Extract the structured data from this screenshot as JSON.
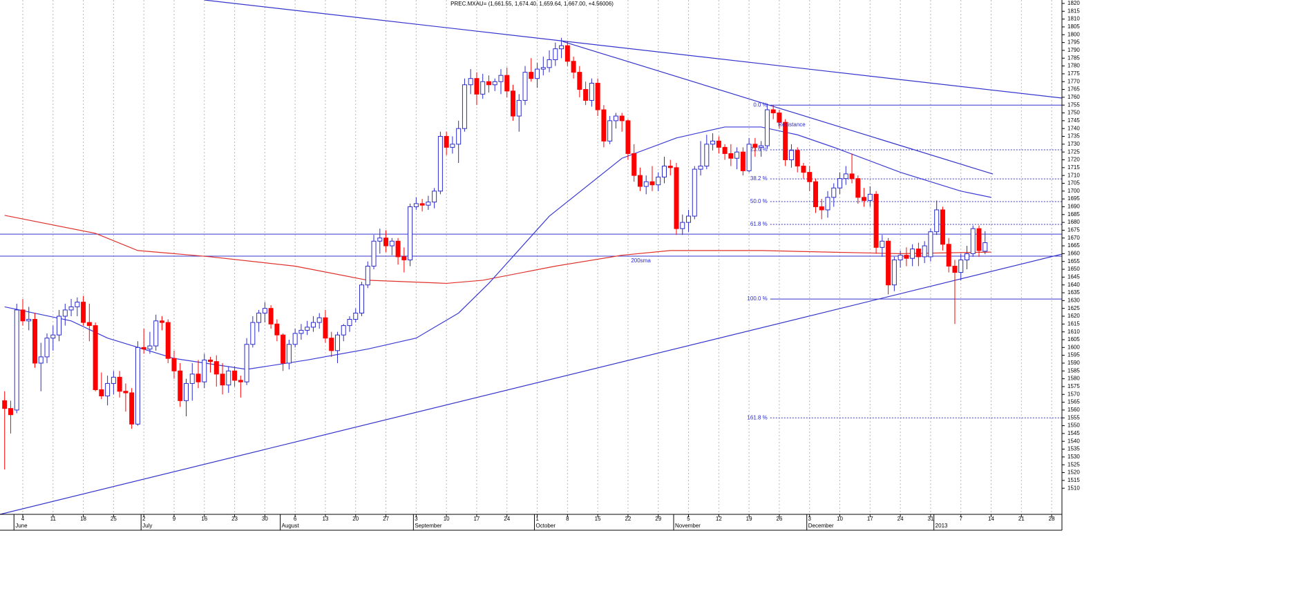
{
  "chart_data": {
    "type": "candlestick",
    "title": "PREC.MXAU= (1,661.55, 1,674.40, 1,659.64, 1,667.00, +4.56006)",
    "categories": [
      null,
      null,
      null,
      "4",
      null,
      null,
      null,
      null,
      "11",
      null,
      null,
      null,
      null,
      "18",
      null,
      null,
      null,
      null,
      "25",
      null,
      null,
      null,
      null,
      "2",
      null,
      null,
      null,
      null,
      "9",
      null,
      null,
      null,
      null,
      "16",
      null,
      null,
      null,
      null,
      "23",
      null,
      null,
      null,
      null,
      "30",
      null,
      null,
      null,
      null,
      "6",
      null,
      null,
      null,
      null,
      "13",
      null,
      null,
      null,
      null,
      "20",
      null,
      null,
      null,
      null,
      "27",
      null,
      null,
      null,
      null,
      "3",
      null,
      null,
      null,
      null,
      "10",
      null,
      null,
      null,
      null,
      "17",
      null,
      null,
      null,
      null,
      "24",
      null,
      null,
      null,
      null,
      "1",
      null,
      null,
      null,
      null,
      "8",
      null,
      null,
      null,
      null,
      "15",
      null,
      null,
      null,
      null,
      "22",
      null,
      null,
      null,
      null,
      "29",
      null,
      null,
      null,
      null,
      "5",
      null,
      null,
      null,
      null,
      "12",
      null,
      null,
      null,
      null,
      "19",
      null,
      null,
      null,
      null,
      "26",
      null,
      null,
      null,
      null,
      "3",
      null,
      null,
      null,
      null,
      "10",
      null,
      null,
      null,
      null,
      "17",
      null,
      null,
      null,
      null,
      "24",
      null,
      null,
      null,
      null,
      "31",
      null,
      null,
      null,
      null,
      "7",
      null,
      null,
      null,
      null,
      "14",
      null,
      null,
      null,
      null,
      "21",
      null,
      null,
      null,
      null,
      "28",
      null
    ],
    "month_labels": [
      {
        "index": 2,
        "label": "June"
      },
      {
        "index": 23,
        "label": "July"
      },
      {
        "index": 46,
        "label": "August"
      },
      {
        "index": 68,
        "label": "September"
      },
      {
        "index": 88,
        "label": "October"
      },
      {
        "index": 111,
        "label": "November"
      },
      {
        "index": 133,
        "label": "December"
      },
      {
        "index": 154,
        "label": "2013"
      }
    ],
    "candles": [
      [
        1566,
        1572,
        1522,
        1561
      ],
      [
        1561,
        1566,
        1545,
        1557
      ],
      [
        1560,
        1628,
        1558,
        1624
      ],
      [
        1624,
        1631,
        1614,
        1617
      ],
      [
        1617,
        1626,
        1611,
        1618
      ],
      [
        1618,
        1622,
        1587,
        1590
      ],
      [
        1590,
        1603,
        1572,
        1594
      ],
      [
        1594,
        1609,
        1590,
        1606
      ],
      [
        1606,
        1614,
        1598,
        1608
      ],
      [
        1608,
        1624,
        1604,
        1620
      ],
      [
        1620,
        1628,
        1614,
        1624
      ],
      [
        1624,
        1631,
        1620,
        1626
      ],
      [
        1626,
        1632,
        1620,
        1629
      ],
      [
        1629,
        1633,
        1614,
        1616
      ],
      [
        1616,
        1628,
        1604,
        1614
      ],
      [
        1614,
        1616,
        1572,
        1573
      ],
      [
        1573,
        1584,
        1567,
        1569
      ],
      [
        1569,
        1582,
        1563,
        1577
      ],
      [
        1577,
        1585,
        1570,
        1581
      ],
      [
        1581,
        1585,
        1568,
        1572
      ],
      [
        1572,
        1577,
        1559,
        1571
      ],
      [
        1571,
        1574,
        1548,
        1551
      ],
      [
        1551,
        1604,
        1550,
        1600
      ],
      [
        1600,
        1612,
        1596,
        1599
      ],
      [
        1599,
        1610,
        1596,
        1601
      ],
      [
        1601,
        1621,
        1598,
        1617
      ],
      [
        1617,
        1620,
        1611,
        1616
      ],
      [
        1616,
        1618,
        1590,
        1593
      ],
      [
        1593,
        1598,
        1580,
        1585
      ],
      [
        1585,
        1590,
        1562,
        1566
      ],
      [
        1566,
        1580,
        1556,
        1577
      ],
      [
        1577,
        1590,
        1566,
        1583
      ],
      [
        1583,
        1592,
        1574,
        1578
      ],
      [
        1578,
        1596,
        1574,
        1592
      ],
      [
        1592,
        1594,
        1584,
        1591
      ],
      [
        1591,
        1595,
        1575,
        1583
      ],
      [
        1583,
        1590,
        1570,
        1576
      ],
      [
        1576,
        1588,
        1571,
        1585
      ],
      [
        1585,
        1588,
        1575,
        1579
      ],
      [
        1579,
        1582,
        1568,
        1578
      ],
      [
        1578,
        1606,
        1576,
        1602
      ],
      [
        1602,
        1620,
        1600,
        1616
      ],
      [
        1616,
        1624,
        1610,
        1622
      ],
      [
        1622,
        1629,
        1616,
        1625
      ],
      [
        1625,
        1627,
        1612,
        1615
      ],
      [
        1615,
        1618,
        1604,
        1608
      ],
      [
        1608,
        1609,
        1585,
        1590
      ],
      [
        1590,
        1605,
        1586,
        1602
      ],
      [
        1602,
        1612,
        1600,
        1609
      ],
      [
        1609,
        1615,
        1605,
        1611
      ],
      [
        1611,
        1617,
        1608,
        1613
      ],
      [
        1613,
        1620,
        1610,
        1616
      ],
      [
        1616,
        1622,
        1612,
        1619
      ],
      [
        1619,
        1624,
        1603,
        1606
      ],
      [
        1606,
        1610,
        1594,
        1598
      ],
      [
        1598,
        1610,
        1590,
        1608
      ],
      [
        1608,
        1615,
        1604,
        1614
      ],
      [
        1614,
        1620,
        1610,
        1618
      ],
      [
        1618,
        1625,
        1616,
        1622
      ],
      [
        1622,
        1642,
        1620,
        1640
      ],
      [
        1640,
        1655,
        1638,
        1652
      ],
      [
        1652,
        1672,
        1650,
        1668
      ],
      [
        1668,
        1676,
        1660,
        1670
      ],
      [
        1670,
        1675,
        1661,
        1665
      ],
      [
        1665,
        1670,
        1659,
        1668
      ],
      [
        1668,
        1670,
        1653,
        1658
      ],
      [
        1658,
        1664,
        1648,
        1656
      ],
      [
        1656,
        1692,
        1652,
        1690
      ],
      [
        1690,
        1696,
        1688,
        1692
      ],
      [
        1692,
        1695,
        1687,
        1691
      ],
      [
        1691,
        1697,
        1688,
        1693
      ],
      [
        1693,
        1702,
        1689,
        1700
      ],
      [
        1700,
        1738,
        1698,
        1735
      ],
      [
        1735,
        1738,
        1723,
        1728
      ],
      [
        1728,
        1735,
        1724,
        1730
      ],
      [
        1730,
        1745,
        1718,
        1740
      ],
      [
        1740,
        1772,
        1738,
        1768
      ],
      [
        1768,
        1778,
        1762,
        1772
      ],
      [
        1772,
        1776,
        1755,
        1762
      ],
      [
        1762,
        1775,
        1759,
        1770
      ],
      [
        1770,
        1774,
        1763,
        1768
      ],
      [
        1768,
        1772,
        1764,
        1770
      ],
      [
        1770,
        1778,
        1762,
        1774
      ],
      [
        1774,
        1779,
        1760,
        1764
      ],
      [
        1764,
        1768,
        1745,
        1748
      ],
      [
        1748,
        1762,
        1738,
        1758
      ],
      [
        1758,
        1780,
        1755,
        1776
      ],
      [
        1776,
        1785,
        1770,
        1772
      ],
      [
        1772,
        1782,
        1766,
        1778
      ],
      [
        1778,
        1786,
        1774,
        1779
      ],
      [
        1779,
        1790,
        1776,
        1784
      ],
      [
        1784,
        1795,
        1780,
        1791
      ],
      [
        1791,
        1798,
        1785,
        1793
      ],
      [
        1793,
        1796,
        1780,
        1783
      ],
      [
        1783,
        1786,
        1772,
        1776
      ],
      [
        1776,
        1780,
        1760,
        1765
      ],
      [
        1765,
        1770,
        1755,
        1758
      ],
      [
        1758,
        1772,
        1754,
        1769
      ],
      [
        1769,
        1772,
        1748,
        1752
      ],
      [
        1752,
        1755,
        1728,
        1732
      ],
      [
        1732,
        1748,
        1730,
        1745
      ],
      [
        1745,
        1750,
        1740,
        1748
      ],
      [
        1748,
        1750,
        1738,
        1745
      ],
      [
        1745,
        1746,
        1720,
        1724
      ],
      [
        1724,
        1730,
        1706,
        1710
      ],
      [
        1710,
        1715,
        1700,
        1703
      ],
      [
        1703,
        1710,
        1698,
        1706
      ],
      [
        1706,
        1716,
        1700,
        1704
      ],
      [
        1704,
        1712,
        1700,
        1709
      ],
      [
        1709,
        1722,
        1705,
        1716
      ],
      [
        1716,
        1720,
        1710,
        1715
      ],
      [
        1715,
        1718,
        1672,
        1676
      ],
      [
        1676,
        1685,
        1672,
        1680
      ],
      [
        1680,
        1688,
        1674,
        1684
      ],
      [
        1684,
        1716,
        1682,
        1714
      ],
      [
        1714,
        1732,
        1710,
        1716
      ],
      [
        1716,
        1736,
        1714,
        1730
      ],
      [
        1730,
        1737,
        1726,
        1732
      ],
      [
        1732,
        1735,
        1724,
        1728
      ],
      [
        1728,
        1730,
        1720,
        1724
      ],
      [
        1724,
        1730,
        1716,
        1721
      ],
      [
        1721,
        1728,
        1714,
        1725
      ],
      [
        1725,
        1728,
        1710,
        1713
      ],
      [
        1713,
        1734,
        1712,
        1730
      ],
      [
        1730,
        1734,
        1722,
        1728
      ],
      [
        1728,
        1732,
        1722,
        1729
      ],
      [
        1729,
        1756,
        1727,
        1752
      ],
      [
        1752,
        1755,
        1746,
        1750
      ],
      [
        1750,
        1752,
        1740,
        1744
      ],
      [
        1744,
        1746,
        1716,
        1720
      ],
      [
        1720,
        1730,
        1715,
        1726
      ],
      [
        1726,
        1728,
        1712,
        1716
      ],
      [
        1716,
        1718,
        1708,
        1712
      ],
      [
        1712,
        1716,
        1700,
        1706
      ],
      [
        1706,
        1708,
        1686,
        1690
      ],
      [
        1690,
        1695,
        1682,
        1688
      ],
      [
        1688,
        1700,
        1683,
        1696
      ],
      [
        1696,
        1705,
        1690,
        1702
      ],
      [
        1702,
        1712,
        1698,
        1708
      ],
      [
        1708,
        1716,
        1704,
        1711
      ],
      [
        1711,
        1724,
        1705,
        1708
      ],
      [
        1708,
        1710,
        1692,
        1696
      ],
      [
        1696,
        1702,
        1690,
        1694
      ],
      [
        1694,
        1703,
        1690,
        1698
      ],
      [
        1698,
        1700,
        1660,
        1664
      ],
      [
        1664,
        1672,
        1658,
        1668
      ],
      [
        1668,
        1670,
        1634,
        1640
      ],
      [
        1640,
        1658,
        1636,
        1656
      ],
      [
        1656,
        1662,
        1651,
        1659
      ],
      [
        1659,
        1664,
        1652,
        1657
      ],
      [
        1657,
        1666,
        1652,
        1663
      ],
      [
        1663,
        1667,
        1652,
        1658
      ],
      [
        1658,
        1668,
        1654,
        1665
      ],
      [
        1658,
        1676,
        1655,
        1674
      ],
      [
        1674,
        1694,
        1672,
        1688
      ],
      [
        1688,
        1690,
        1662,
        1666
      ],
      [
        1666,
        1670,
        1648,
        1652
      ],
      [
        1652,
        1656,
        1615,
        1648
      ],
      [
        1648,
        1660,
        1643,
        1656
      ],
      [
        1656,
        1665,
        1650,
        1660
      ],
      [
        1660,
        1678,
        1658,
        1676
      ],
      [
        1676,
        1678,
        1658,
        1662
      ],
      [
        1661.55,
        1674.4,
        1659.64,
        1667
      ],
      null,
      null,
      null,
      null,
      null,
      null,
      null,
      null,
      null,
      null,
      null
    ],
    "up_color": "#2a2acc",
    "down_color": "#ff0000",
    "series": [
      {
        "name": "200sma",
        "color": "#e0302a",
        "x": [
          0,
          15,
          22,
          34,
          48,
          60,
          73,
          79,
          91,
          102,
          110,
          125,
          136,
          148,
          163
        ],
        "values": [
          1684.5,
          1673,
          1662,
          1658,
          1652,
          1643,
          1641,
          1643,
          1652,
          1659,
          1662,
          1662,
          1661,
          1660,
          1661
        ]
      },
      {
        "color": "#3a3ad6",
        "x": [
          0,
          11,
          17,
          28,
          40,
          50,
          60,
          68,
          75,
          80,
          90,
          102,
          111,
          119,
          125,
          131,
          137,
          148,
          158,
          163
        ],
        "values": [
          1626,
          1617,
          1606,
          1593,
          1586,
          1592,
          1599,
          1606,
          1622,
          1641,
          1684,
          1721,
          1734,
          1741,
          1741,
          1736,
          1728,
          1712,
          1700,
          1696
        ]
      }
    ],
    "trendlines": [
      {
        "x": [
          33,
          174.7
        ],
        "values": [
          1822.2,
          1759.5
        ]
      },
      {
        "x": [
          92.2,
          163.3
        ],
        "values": [
          1795.7,
          1710.9
        ]
      },
      {
        "x": [
          -0.765,
          174.7
        ],
        "values": [
          1493.3,
          1659.7
        ]
      }
    ],
    "trend_color": "#3333cc",
    "hlines": [
      1672.5,
      1658.4
    ],
    "fib_x": 126.5,
    "fib_levels": [
      {
        "ratio": 0.0,
        "label": "0.0 %",
        "price": 1755,
        "solid": true
      },
      {
        "ratio": 23.6,
        "label": "23.6 %",
        "price": 1726.4
      },
      {
        "ratio": 38.2,
        "label": "38.2 %",
        "price": 1707.8
      },
      {
        "ratio": 50.0,
        "label": "50.0 %",
        "price": 1693.3
      },
      {
        "ratio": 61.8,
        "label": "61.8 %",
        "price": 1678.7
      },
      {
        "ratio": 100.0,
        "label": "100.0 %",
        "price": 1631,
        "solid": true
      },
      {
        "ratio": 161.8,
        "label": "161.8 %",
        "price": 1555
      }
    ],
    "annotations": [
      {
        "text": "Resistance",
        "x": 127.8,
        "y": 1742.3
      },
      {
        "text": "200sma",
        "x": 103.5,
        "y": 1655.3
      }
    ],
    "xlim": [
      -0.765,
      174.7
    ],
    "ylim": [
      1493.3,
      1822.2
    ],
    "yticks": [
      1510,
      1515,
      1520,
      1525,
      1530,
      1535,
      1540,
      1545,
      1550,
      1555,
      1560,
      1565,
      1570,
      1575,
      1580,
      1585,
      1590,
      1595,
      1600,
      1605,
      1610,
      1615,
      1620,
      1625,
      1630,
      1635,
      1640,
      1645,
      1650,
      1655,
      1660,
      1665,
      1670,
      1675,
      1680,
      1685,
      1690,
      1695,
      1700,
      1705,
      1710,
      1715,
      1720,
      1725,
      1730,
      1735,
      1740,
      1745,
      1750,
      1755,
      1760,
      1765,
      1770,
      1775,
      1780,
      1785,
      1790,
      1795,
      1800,
      1805,
      1810,
      1815,
      1820
    ],
    "grid": "x"
  }
}
